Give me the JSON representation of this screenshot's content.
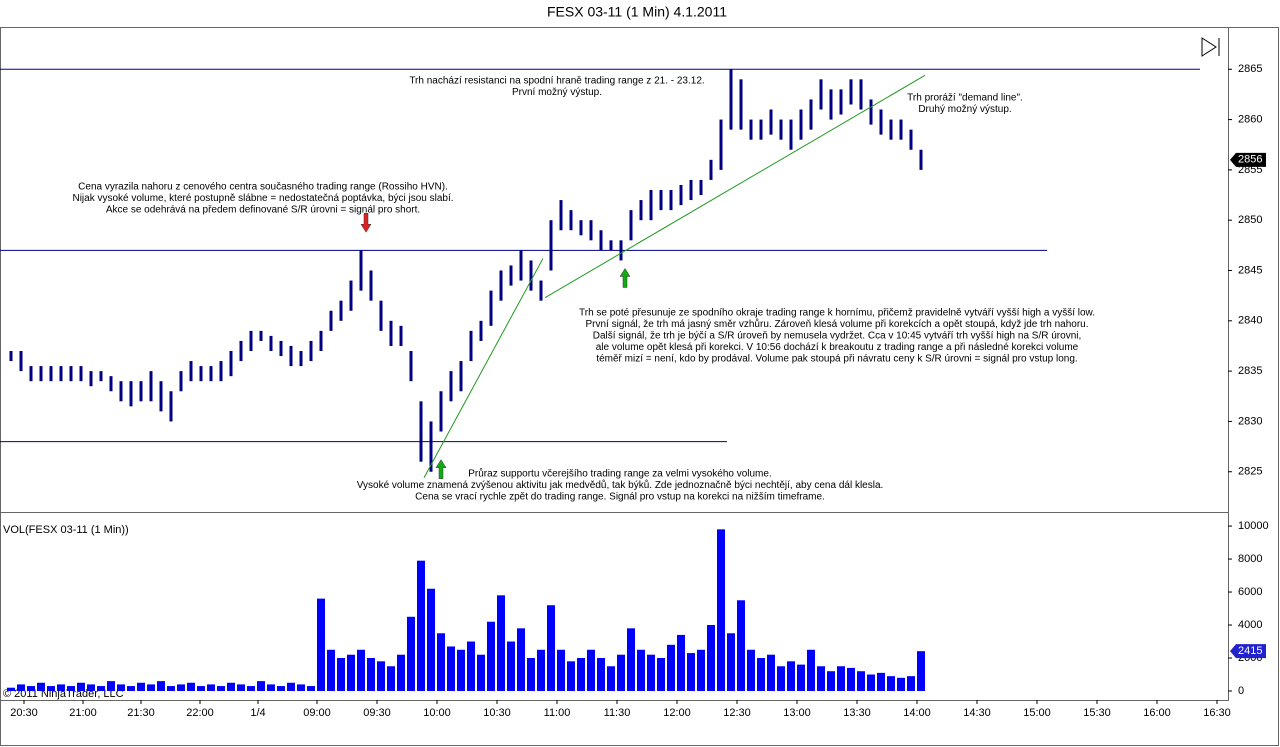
{
  "chart_data": [
    {
      "type": "hilo",
      "title": "FESX 03-11 (1 Min)  4.1.2011",
      "color": "#000080",
      "xlim": [
        0,
        612.5
      ],
      "ylim": [
        2821,
        2869.1
      ],
      "yticks": [
        2825,
        2830,
        2835,
        2840,
        2845,
        2850,
        2855,
        2860,
        2865
      ],
      "x": [
        4,
        9,
        14,
        19,
        24,
        29,
        34,
        39,
        44,
        49,
        54,
        59,
        64,
        69,
        74,
        79,
        84,
        89,
        94,
        99,
        104,
        109,
        114,
        119,
        124,
        129,
        134,
        139,
        144,
        149,
        154,
        159,
        164,
        169,
        174,
        179,
        184,
        189,
        194,
        199,
        204,
        209,
        214,
        219,
        224,
        229,
        234,
        239,
        244,
        249,
        254,
        259,
        264,
        269,
        274,
        279,
        284,
        289,
        294,
        299,
        304,
        309,
        314,
        319,
        324,
        329,
        334,
        339,
        344,
        349,
        354,
        359,
        364,
        369,
        374,
        379,
        384,
        389,
        394,
        399,
        404,
        409,
        414,
        419,
        424,
        429,
        434,
        439,
        444,
        449,
        454,
        459
      ],
      "high": [
        2837,
        2837,
        2835.5,
        2835.5,
        2835.5,
        2835.5,
        2835.5,
        2835.5,
        2835,
        2835,
        2834.5,
        2834,
        2834,
        2834,
        2835,
        2834,
        2833,
        2835,
        2836,
        2835.5,
        2835.5,
        2836,
        2837,
        2838,
        2839,
        2839,
        2838.5,
        2838,
        2837.5,
        2837,
        2838,
        2839,
        2841,
        2842,
        2844,
        2847,
        2845,
        2842,
        2840,
        2839.5,
        2837,
        2832,
        2830,
        2833,
        2835,
        2836,
        2839,
        2840,
        2843,
        2845,
        2845.5,
        2847,
        2846,
        2844,
        2850,
        2852,
        2851,
        2850,
        2850,
        2849,
        2848,
        2848,
        2851,
        2852,
        2853,
        2853,
        2853,
        2853.5,
        2854,
        2854,
        2856,
        2860,
        2865,
        2864,
        2860,
        2860,
        2861,
        2860,
        2860,
        2861,
        2862,
        2864,
        2863,
        2863,
        2864,
        2864,
        2862,
        2861,
        2860,
        2860,
        2859,
        2857
      ],
      "low": [
        2836,
        2835,
        2834,
        2834,
        2834,
        2834,
        2834,
        2834,
        2833.5,
        2834,
        2833,
        2832,
        2831.5,
        2832,
        2832,
        2831,
        2830,
        2833,
        2834,
        2834,
        2834,
        2834,
        2834.5,
        2836,
        2837,
        2838,
        2837,
        2836.5,
        2835.5,
        2835.5,
        2836,
        2837,
        2839,
        2840,
        2841,
        2843,
        2842,
        2839,
        2837.5,
        2837.5,
        2834,
        2826,
        2825,
        2829,
        2832,
        2833,
        2836,
        2838,
        2839.5,
        2842,
        2843.5,
        2844,
        2843,
        2842,
        2845,
        2849,
        2849,
        2848.5,
        2848,
        2847,
        2847,
        2846,
        2848,
        2850,
        2850,
        2851,
        2851,
        2851.5,
        2852,
        2852.5,
        2854,
        2855,
        2859,
        2859,
        2858,
        2858,
        2858.5,
        2858,
        2857,
        2858,
        2859,
        2861,
        2860,
        2860.5,
        2861.5,
        2861,
        2859.5,
        2858.5,
        2858,
        2858,
        2857,
        2855
      ],
      "last_price": 2856,
      "levels": [
        {
          "value": 2865,
          "color": "#000080"
        },
        {
          "value": 2847,
          "color": "#000080"
        },
        {
          "value": 2828,
          "color": "#000080"
        }
      ],
      "trendlines": [
        {
          "x": [
            210.5,
            270
          ],
          "y": [
            2824.4,
            2846.2
          ],
          "color": "#229922"
        },
        {
          "x": [
            271,
            461
          ],
          "y": [
            2842.3,
            2864.4
          ],
          "color": "#229922"
        }
      ],
      "arrows": [
        {
          "x": 181.5,
          "y": 2848.8,
          "direction": "down",
          "color": "#dd2222"
        },
        {
          "x": 219,
          "y": 2826.2,
          "direction": "up",
          "color": "#11aa11"
        },
        {
          "x": 311,
          "y": 2845.2,
          "direction": "up",
          "color": "#11aa11"
        }
      ],
      "annotations": [
        {
          "lines": [
            "Trh nachází resistanci na spodní hraně trading range z 21. - 23.12.",
            "První možný výstup."
          ]
        },
        {
          "lines": [
            "Trh proráží \"demand line\".",
            "Druhý možný výstup."
          ]
        },
        {
          "lines": [
            "Cena vyrazila nahoru z cenového centra současného trading range (Rossiho HVN).",
            "Nijak vysoké volume, které postupně slábne = nedostatečná poptávka, býci jsou slabí.",
            "Akce se odehrává na předem definované S/R úrovni = signál pro short."
          ]
        },
        {
          "lines": [
            "Trh se poté přesunuje ze spodního okraje trading range k hornímu, přičemž pravidelně vytváří vyšší high a vyšší low.",
            "První signál, že trh má jasný směr vzhůru. Zároveň klesá volume při korekcích a opět stoupá, když jde trh nahoru.",
            "Další signál, že trh je býčí a S/R úroveň by nemusela vydržet. Cca v 10:45 vytváří trh vyšší high na S/R úrovni,",
            "ale volume opět klesá při korekci. V 10:56 dochází k breakoutu z trading range a při následné korekci volume",
            "téměř mizí = není, kdo by prodával. Volume pak stoupá při návratu ceny k S/R úrovni = signál pro vstup long."
          ]
        },
        {
          "lines": [
            "Průraz supportu včerejšího trading range za velmi vysokého volume.",
            "Vysoké volume znamená zvýšenou aktivitu jak medvědů, tak býků. Zde jednoznačně býci nechtějí, aby cena dál klesla.",
            "Cena se vrací rychle zpět do trading range. Signál pro vstup na korekci na nižším timeframe."
          ]
        }
      ]
    },
    {
      "type": "bar",
      "title": "VOL(FESX 03-11 (1 Min))",
      "copyright": "© 2011 NinjaTrader, LLC",
      "color": "#0000ff",
      "xlim": [
        0,
        612.5
      ],
      "ylim": [
        -545,
        10730
      ],
      "yticks": [
        0,
        2000,
        4000,
        6000,
        8000,
        10000
      ],
      "xticks": [
        {
          "value": 10.5,
          "label": "20:30"
        },
        {
          "value": 40,
          "label": "21:00"
        },
        {
          "value": 69,
          "label": "21:30"
        },
        {
          "value": 98.5,
          "label": "22:00"
        },
        {
          "value": 127.5,
          "label": "1/4"
        },
        {
          "value": 157,
          "label": "09:00"
        },
        {
          "value": 187,
          "label": "09:30"
        },
        {
          "value": 217,
          "label": "10:00"
        },
        {
          "value": 247,
          "label": "10:30"
        },
        {
          "value": 277,
          "label": "11:00"
        },
        {
          "value": 307,
          "label": "11:30"
        },
        {
          "value": 337,
          "label": "12:00"
        },
        {
          "value": 367,
          "label": "12:30"
        },
        {
          "value": 397,
          "label": "13:00"
        },
        {
          "value": 427,
          "label": "13:30"
        },
        {
          "value": 457,
          "label": "14:00"
        },
        {
          "value": 487,
          "label": "14:30"
        },
        {
          "value": 517,
          "label": "15:00"
        },
        {
          "value": 547,
          "label": "15:30"
        },
        {
          "value": 577,
          "label": "16:00"
        },
        {
          "value": 607,
          "label": "16:30"
        }
      ],
      "x": [
        4,
        9,
        14,
        19,
        24,
        29,
        34,
        39,
        44,
        49,
        54,
        59,
        64,
        69,
        74,
        79,
        84,
        89,
        94,
        99,
        104,
        109,
        114,
        119,
        124,
        129,
        134,
        139,
        144,
        149,
        154,
        159,
        164,
        169,
        174,
        179,
        184,
        189,
        194,
        199,
        204,
        209,
        214,
        219,
        224,
        229,
        234,
        239,
        244,
        249,
        254,
        259,
        264,
        269,
        274,
        279,
        284,
        289,
        294,
        299,
        304,
        309,
        314,
        319,
        324,
        329,
        334,
        339,
        344,
        349,
        354,
        359,
        364,
        369,
        374,
        379,
        384,
        389,
        394,
        399,
        404,
        409,
        414,
        419,
        424,
        429,
        434,
        439,
        444,
        449,
        454,
        459
      ],
      "values": [
        200,
        400,
        300,
        500,
        300,
        400,
        300,
        500,
        400,
        300,
        600,
        400,
        300,
        500,
        400,
        600,
        300,
        400,
        500,
        300,
        400,
        300,
        500,
        400,
        300,
        600,
        400,
        300,
        500,
        400,
        300,
        5600,
        2500,
        2000,
        2200,
        2500,
        2000,
        1800,
        1500,
        2200,
        4500,
        7900,
        6200,
        3500,
        2700,
        2500,
        3000,
        2200,
        4200,
        5800,
        3000,
        3800,
        2000,
        2500,
        5200,
        2500,
        1800,
        2000,
        2500,
        2000,
        1500,
        2200,
        3800,
        2500,
        2200,
        2000,
        2800,
        3400,
        2300,
        2500,
        4000,
        9800,
        3500,
        5500,
        2500,
        2000,
        2200,
        1500,
        1800,
        1600,
        2500,
        1500,
        1200,
        1500,
        1400,
        1200,
        1000,
        1100,
        900,
        800,
        900,
        2415
      ]
    }
  ]
}
